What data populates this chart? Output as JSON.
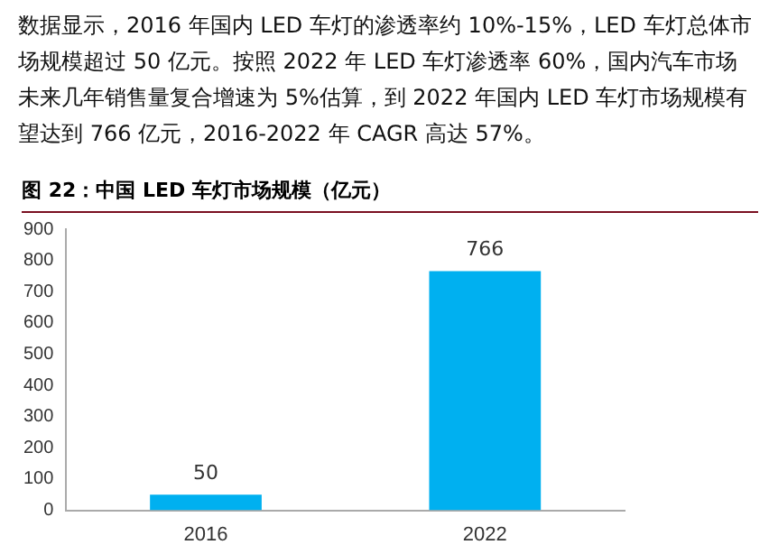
{
  "chart_data": {
    "type": "bar",
    "title": "图 22：中国 LED 车灯市场规模（亿元）",
    "annotations": [
      "数据显示，2016 年国内 LED 车灯的渗透率约 10%-15%，LED 车灯总体市场规模超过 50 亿元。按照 2022 年 LED 车灯渗透率 60%，国内汽车市场未来几年销售量复合增速为 5%估算，到 2022 年国内 LED 车灯市场规模有望达到 766 亿元，2016-2022 年 CAGR 高达 57%。"
    ],
    "categories": [
      "2016",
      "2022"
    ],
    "values": [
      50,
      766
    ],
    "color": "#00b0f0",
    "ylim": [
      0,
      900
    ],
    "yticks": [
      0,
      100,
      200,
      300,
      400,
      500,
      600,
      700,
      800,
      900
    ],
    "grid": false,
    "legend": false,
    "data_labels": true
  }
}
